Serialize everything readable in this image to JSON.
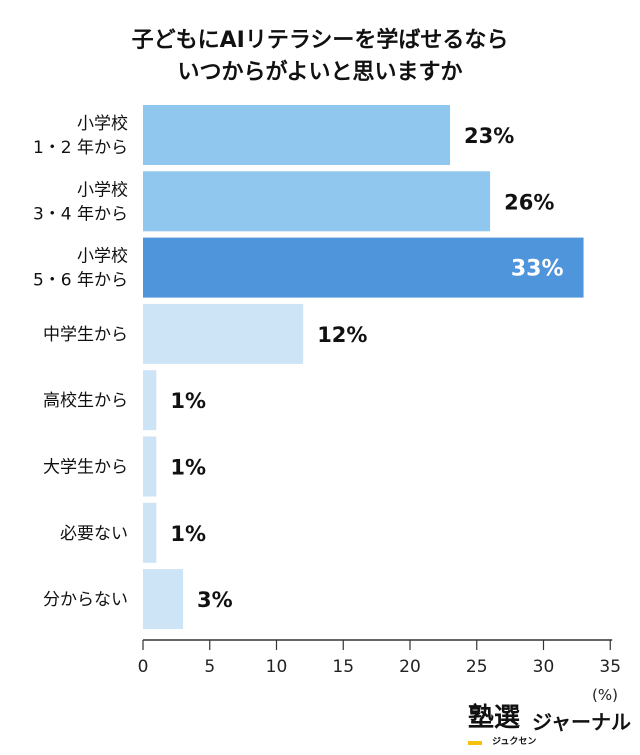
{
  "title": {
    "line1": "子どもにAIリテラシーを学ばせるなら",
    "line2": "いつからがよいと思いますか"
  },
  "unit_label": "(%)",
  "logo": {
    "main": "塾選",
    "sub": "ジュクセン",
    "brand": "ジャーナル"
  },
  "colors": {
    "bar_highlight": "#4f95db",
    "bar_mid": "#90c7ee",
    "bar_light": "#cde3f6",
    "axis": "#333333",
    "logo_accent": "#f4c20d"
  },
  "chart_data": {
    "type": "bar",
    "orientation": "horizontal",
    "categories": [
      [
        "小学校",
        "1・2 年から"
      ],
      [
        "小学校",
        "3・4 年から"
      ],
      [
        "小学校",
        "5・6 年から"
      ],
      [
        "中学生から"
      ],
      [
        "高校生から"
      ],
      [
        "大学生から"
      ],
      [
        "必要ない"
      ],
      [
        "分からない"
      ]
    ],
    "values": [
      23,
      26,
      33,
      12,
      1,
      1,
      1,
      3
    ],
    "value_labels": [
      "23%",
      "26%",
      "33%",
      "12%",
      "1%",
      "1%",
      "1%",
      "3%"
    ],
    "bar_colors": [
      "mid",
      "mid",
      "highlight",
      "light",
      "light",
      "light",
      "light",
      "light"
    ],
    "xlim": [
      0,
      35
    ],
    "xticks": [
      0,
      5,
      10,
      15,
      20,
      25,
      30,
      35
    ],
    "grid": false
  }
}
